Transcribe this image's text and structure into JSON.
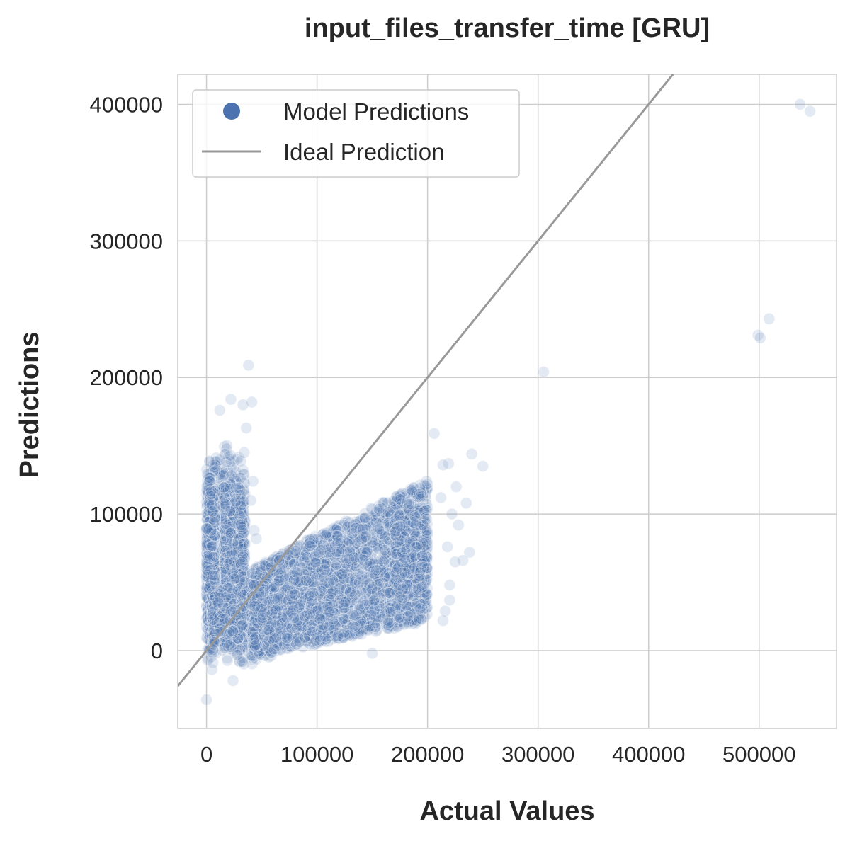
{
  "chart_data": {
    "type": "scatter",
    "title": "input_files_transfer_time [GRU]",
    "xlabel": "Actual Values",
    "ylabel": "Predictions",
    "xlim": [
      -26000,
      570000
    ],
    "ylim": [
      -57000,
      422000
    ],
    "x_ticks": [
      0,
      100000,
      200000,
      300000,
      400000,
      500000
    ],
    "y_ticks": [
      0,
      100000,
      200000,
      300000,
      400000
    ],
    "grid": true,
    "legend": {
      "position": "top-left",
      "entries": [
        {
          "label": "Model Predictions",
          "marker": "circle",
          "color": "#4c72b0"
        },
        {
          "label": "Ideal Prediction",
          "marker": "line",
          "color": "#999999"
        }
      ]
    },
    "series": [
      {
        "name": "Model Predictions",
        "color": "#4c72b0",
        "point_alpha": 0.15,
        "clusters": [
          {
            "x_range": [
              0,
              35000
            ],
            "y_range": [
              -20000,
              162000
            ],
            "count": 1500
          },
          {
            "x_range": [
              0,
              8000
            ],
            "y_range": [
              -25000,
              150000
            ],
            "count": 700
          },
          {
            "x_range": [
              5000,
              60000
            ],
            "y_range": [
              -15000,
              60000
            ],
            "count": 900
          },
          {
            "x_range": [
              40000,
              200000
            ],
            "y_range": [
              -5000,
              125000
            ],
            "count": 2600,
            "trend": "y grows with x"
          },
          {
            "x_range": [
              170000,
              200000
            ],
            "y_range": [
              20000,
              120000
            ],
            "count": 300
          }
        ],
        "points": [
          [
            38000,
            209000
          ],
          [
            22000,
            184000
          ],
          [
            41000,
            182000
          ],
          [
            33000,
            180000
          ],
          [
            12000,
            176000
          ],
          [
            36000,
            163000
          ],
          [
            42000,
            124000
          ],
          [
            40000,
            110000
          ],
          [
            43000,
            88000
          ],
          [
            45000,
            82000
          ],
          [
            150000,
            -2000
          ],
          [
            24000,
            -22000
          ],
          [
            0,
            -36000
          ],
          [
            305000,
            204000
          ],
          [
            499000,
            231000
          ],
          [
            501000,
            229000
          ],
          [
            509000,
            243000
          ],
          [
            537000,
            400000
          ],
          [
            546000,
            395000
          ],
          [
            250000,
            135000
          ],
          [
            240000,
            144000
          ],
          [
            235000,
            108000
          ],
          [
            238000,
            72000
          ],
          [
            228000,
            92000
          ],
          [
            232000,
            66000
          ],
          [
            225000,
            65000
          ],
          [
            219000,
            137000
          ],
          [
            214000,
            136000
          ],
          [
            206000,
            159000
          ],
          [
            216000,
            29000
          ],
          [
            214000,
            22000
          ],
          [
            220000,
            37000
          ],
          [
            222000,
            100000
          ],
          [
            218000,
            76000
          ],
          [
            220000,
            48000
          ],
          [
            212000,
            112000
          ],
          [
            226000,
            120000
          ]
        ]
      },
      {
        "name": "Ideal Prediction",
        "type": "line",
        "color": "#999999",
        "x": [
          -26000,
          570000
        ],
        "y": [
          -26000,
          570000
        ]
      }
    ]
  }
}
